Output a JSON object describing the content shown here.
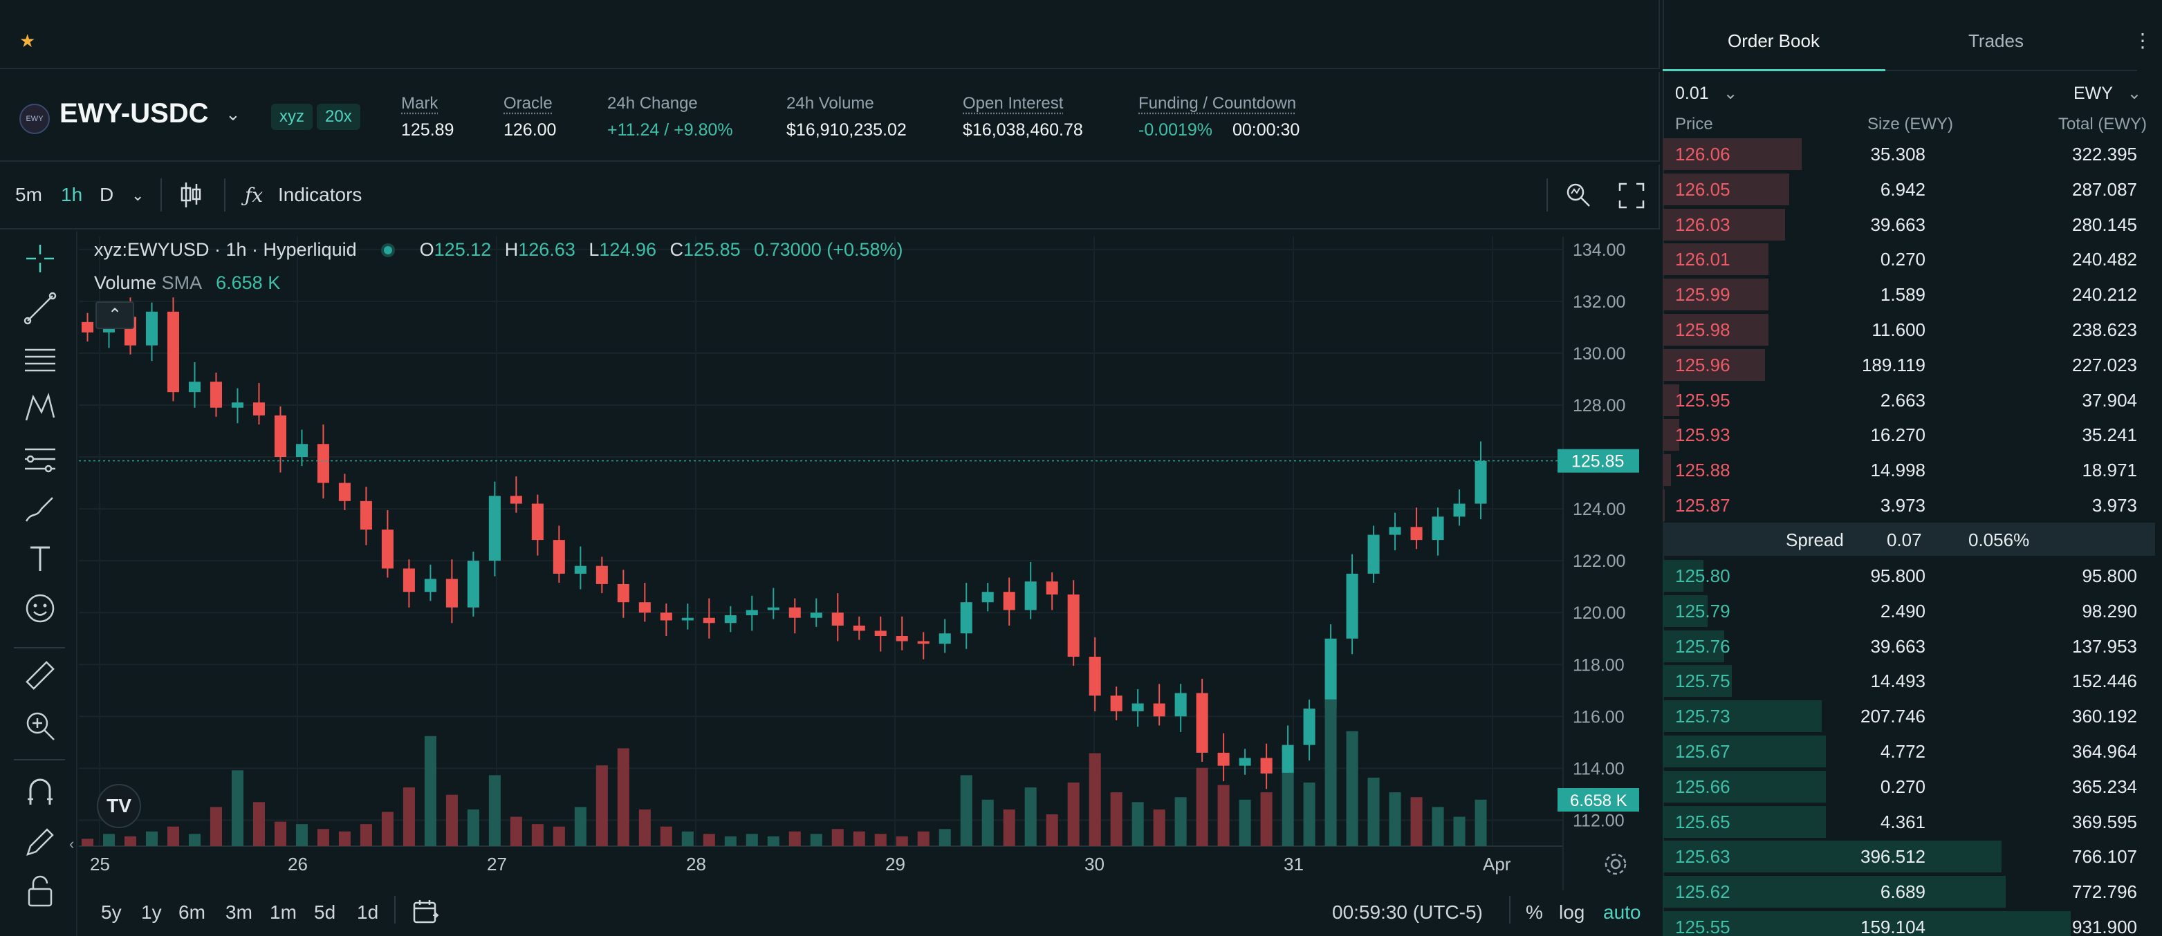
{
  "favorites": {
    "star_icon": "star-icon"
  },
  "ticker": {
    "pair": "EWY-USDC",
    "logo_text": "EWY",
    "tags": [
      "xyz",
      "20x"
    ],
    "stats": [
      {
        "label": "Mark",
        "value": "125.89",
        "underline": true
      },
      {
        "label": "Oracle",
        "value": "126.00",
        "underline": true
      },
      {
        "label": "24h Change",
        "value": "+11.24 / +9.80%",
        "underline": false,
        "color": "green"
      },
      {
        "label": "24h Volume",
        "value": "$16,910,235.02",
        "underline": false
      },
      {
        "label": "Open Interest",
        "value": "$16,038,460.78",
        "underline": true
      },
      {
        "label": "Funding / Countdown",
        "value": "-0.0019%",
        "value2": "00:00:30",
        "underline": true,
        "color": "green"
      }
    ]
  },
  "chart_toolbar": {
    "intervals": [
      "5m",
      "1h",
      "D"
    ],
    "active_interval": "1h",
    "indicators_label": "Indicators"
  },
  "chart_legend": {
    "symbol": "xyz:EWYUSD · 1h · Hyperliquid",
    "o_label": "O",
    "o": "125.12",
    "h_label": "H",
    "h": "126.63",
    "l_label": "L",
    "l": "124.96",
    "c_label": "C",
    "c": "125.85",
    "change": "0.73000 (+0.58%)",
    "volume_label": "Volume",
    "sma_label": "SMA",
    "volume_value": "6.658 K"
  },
  "chart_data": {
    "type": "candlestick",
    "x_ticks": [
      "25",
      "26",
      "27",
      "28",
      "29",
      "30",
      "31",
      "Apr"
    ],
    "y_ticks": [
      "134.00",
      "132.00",
      "130.00",
      "128.00",
      "126.00",
      "124.00",
      "122.00",
      "120.00",
      "118.00",
      "116.00",
      "114.00",
      "112.00"
    ],
    "ylim": [
      111,
      134.5
    ],
    "last_price": "125.85",
    "last_volume": "6.658 K",
    "close_path": [
      130.8,
      131.4,
      130.3,
      131.6,
      128.5,
      128.9,
      127.9,
      128.1,
      127.6,
      126.0,
      126.5,
      125.0,
      124.3,
      123.2,
      121.7,
      120.8,
      121.3,
      120.2,
      122.0,
      124.5,
      124.2,
      122.8,
      121.5,
      121.8,
      121.1,
      120.4,
      120.0,
      119.7,
      119.8,
      119.6,
      119.9,
      120.1,
      120.2,
      119.8,
      120.0,
      119.5,
      119.3,
      119.1,
      118.9,
      118.8,
      119.2,
      120.4,
      120.8,
      120.1,
      121.2,
      120.7,
      118.3,
      116.8,
      116.2,
      116.5,
      116.0,
      116.9,
      114.6,
      114.1,
      114.4,
      113.8,
      114.9,
      116.3,
      119.0,
      121.5,
      123.0,
      123.3,
      122.8,
      123.7,
      124.2,
      125.85
    ],
    "volumes": [
      0.3,
      0.5,
      0.4,
      0.6,
      0.8,
      0.5,
      1.6,
      3.1,
      1.8,
      1.0,
      0.9,
      0.7,
      0.6,
      0.9,
      1.4,
      2.4,
      4.5,
      2.1,
      1.5,
      2.9,
      1.2,
      0.9,
      0.8,
      1.6,
      3.3,
      4.0,
      1.5,
      0.8,
      0.6,
      0.5,
      0.4,
      0.5,
      0.4,
      0.6,
      0.5,
      0.7,
      0.6,
      0.5,
      0.4,
      0.6,
      0.7,
      2.9,
      1.9,
      1.5,
      2.4,
      1.3,
      2.6,
      3.8,
      2.2,
      1.8,
      1.5,
      2.0,
      3.2,
      2.5,
      1.9,
      2.2,
      3.0,
      2.6,
      6.0,
      4.7,
      2.8,
      2.2,
      2.0,
      1.6,
      1.2,
      1.9
    ]
  },
  "bottom_toolbar": {
    "ranges": [
      "5y",
      "1y",
      "6m",
      "3m",
      "1m",
      "5d",
      "1d"
    ],
    "time": "00:59:30 (UTC-5)",
    "percent": "%",
    "log": "log",
    "auto": "auto"
  },
  "order_book": {
    "tabs": [
      "Order Book",
      "Trades"
    ],
    "active_tab": "Order Book",
    "tick_size": "0.01",
    "unit": "EWY",
    "headers": {
      "price": "Price",
      "size": "Size (EWY)",
      "total": "Total (EWY)"
    },
    "asks": [
      {
        "price": "126.06",
        "size": "35.308",
        "total": "322.395",
        "depth": 0.34
      },
      {
        "price": "126.05",
        "size": "6.942",
        "total": "287.087",
        "depth": 0.31
      },
      {
        "price": "126.03",
        "size": "39.663",
        "total": "280.145",
        "depth": 0.3
      },
      {
        "price": "126.01",
        "size": "0.270",
        "total": "240.482",
        "depth": 0.26
      },
      {
        "price": "125.99",
        "size": "1.589",
        "total": "240.212",
        "depth": 0.26
      },
      {
        "price": "125.98",
        "size": "11.600",
        "total": "238.623",
        "depth": 0.26
      },
      {
        "price": "125.96",
        "size": "189.119",
        "total": "227.023",
        "depth": 0.25
      },
      {
        "price": "125.95",
        "size": "2.663",
        "total": "37.904",
        "depth": 0.04
      },
      {
        "price": "125.93",
        "size": "16.270",
        "total": "35.241",
        "depth": 0.04
      },
      {
        "price": "125.88",
        "size": "14.998",
        "total": "18.971",
        "depth": 0.02
      },
      {
        "price": "125.87",
        "size": "3.973",
        "total": "3.973",
        "depth": 0.005
      }
    ],
    "spread": {
      "label": "Spread",
      "value": "0.07",
      "percent": "0.056%"
    },
    "bids": [
      {
        "price": "125.80",
        "size": "95.800",
        "total": "95.800",
        "depth": 0.1
      },
      {
        "price": "125.79",
        "size": "2.490",
        "total": "98.290",
        "depth": 0.11
      },
      {
        "price": "125.76",
        "size": "39.663",
        "total": "137.953",
        "depth": 0.15
      },
      {
        "price": "125.75",
        "size": "14.493",
        "total": "152.446",
        "depth": 0.17
      },
      {
        "price": "125.73",
        "size": "207.746",
        "total": "360.192",
        "depth": 0.39
      },
      {
        "price": "125.67",
        "size": "4.772",
        "total": "364.964",
        "depth": 0.4
      },
      {
        "price": "125.66",
        "size": "0.270",
        "total": "365.234",
        "depth": 0.4
      },
      {
        "price": "125.65",
        "size": "4.361",
        "total": "369.595",
        "depth": 0.4
      },
      {
        "price": "125.63",
        "size": "396.512",
        "total": "766.107",
        "depth": 0.83
      },
      {
        "price": "125.62",
        "size": "6.689",
        "total": "772.796",
        "depth": 0.84
      },
      {
        "price": "125.55",
        "size": "159.104",
        "total": "931.900",
        "depth": 1.0
      }
    ]
  },
  "colors": {
    "up": "#26a69a",
    "down": "#ef5350",
    "accent": "#50d2c1",
    "background": "#0f1a1f"
  }
}
